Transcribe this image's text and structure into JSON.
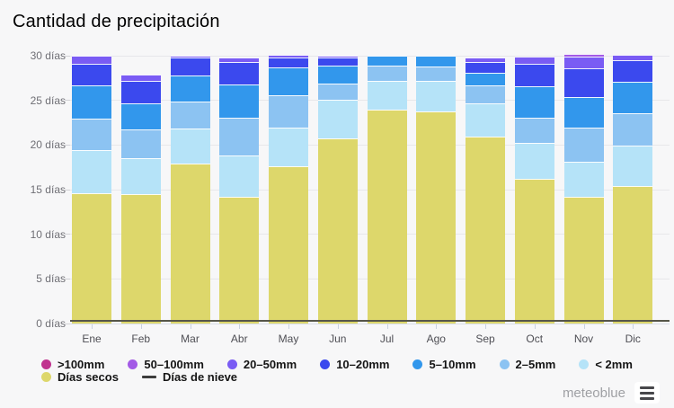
{
  "page": {
    "background": "#f7f7f8"
  },
  "chart_data": {
    "type": "bar",
    "variant": "stacked",
    "title": "Cantidad de precipitación",
    "ylabel": "días",
    "ylim": [
      0,
      30
    ],
    "y_ticks": [
      "30 días",
      "25 días",
      "20 días",
      "15 días",
      "10 días",
      "5 días",
      "0 días"
    ],
    "categories": [
      "Ene",
      "Feb",
      "Mar",
      "Abr",
      "May",
      "Jun",
      "Jul",
      "Ago",
      "Sep",
      "Oct",
      "Nov",
      "Dic"
    ],
    "stack_order": "bottom-to-top",
    "series": [
      {
        "name": "Días secos",
        "color": "#ddd76b",
        "values": [
          14.6,
          14.5,
          17.9,
          14.2,
          17.6,
          20.7,
          24,
          23.8,
          20.9,
          16.2,
          14.2,
          15.4
        ]
      },
      {
        "name": "< 2mm",
        "color": "#b5e3f8",
        "values": [
          4.8,
          4,
          3.9,
          4.6,
          4.3,
          4.4,
          3.2,
          3.4,
          3.8,
          4,
          3.9,
          4.5
        ]
      },
      {
        "name": "2–5mm",
        "color": "#8cc3f2",
        "values": [
          3.6,
          3.2,
          3.1,
          4.3,
          3.7,
          1.8,
          1.7,
          1.6,
          2,
          2.9,
          3.8,
          3.7
        ]
      },
      {
        "name": "5–10mm",
        "color": "#3297ec",
        "values": [
          3.7,
          3,
          2.9,
          3.7,
          3.1,
          2,
          1.1,
          1.2,
          1.4,
          3.5,
          3.5,
          3.5
        ]
      },
      {
        "name": "10–20mm",
        "color": "#3b49ee",
        "values": [
          2.4,
          2.5,
          2,
          2.5,
          1.1,
          0.9,
          0,
          0,
          1.2,
          2.5,
          3.2,
          2.4
        ]
      },
      {
        "name": "20–50mm",
        "color": "#7a5cf4",
        "values": [
          0.9,
          0.7,
          0.2,
          0.5,
          0.3,
          0.2,
          0,
          0,
          0.5,
          0.8,
          1.3,
          0.6
        ]
      },
      {
        "name": "50–100mm",
        "color": "#a35ae6",
        "values": [
          0,
          0,
          0,
          0,
          0,
          0,
          0,
          0,
          0,
          0,
          0.3,
          0
        ]
      },
      {
        "name": ">100mm",
        "color": "#c0338f",
        "values": [
          0,
          0,
          0,
          0,
          0,
          0,
          0,
          0,
          0,
          0,
          0,
          0
        ]
      }
    ],
    "snow_line": {
      "name": "Días de nieve",
      "color": "#565649",
      "value_days": 0
    },
    "grid": "horizontal",
    "legend_position": "bottom"
  },
  "legend": {
    "rows": [
      [
        {
          "label": ">100mm",
          "color": "#c0338f",
          "swatch": "dot"
        },
        {
          "label": "50–100mm",
          "color": "#a35ae6",
          "swatch": "dot"
        },
        {
          "label": "20–50mm",
          "color": "#7a5cf4",
          "swatch": "dot"
        },
        {
          "label": "10–20mm",
          "color": "#3b49ee",
          "swatch": "dot"
        },
        {
          "label": "5–10mm",
          "color": "#3297ec",
          "swatch": "dot"
        },
        {
          "label": "2–5mm",
          "color": "#8cc3f2",
          "swatch": "dot"
        },
        {
          "label": "< 2mm",
          "color": "#b5e3f8",
          "swatch": "dot"
        }
      ],
      [
        {
          "label": "Días secos",
          "color": "#ddd76b",
          "swatch": "dot"
        },
        {
          "label": "Días de nieve",
          "color": "#3c3c3c",
          "swatch": "line"
        }
      ]
    ]
  },
  "branding": {
    "logo_text": "meteoblue",
    "menu_icon": "hamburger-menu"
  }
}
